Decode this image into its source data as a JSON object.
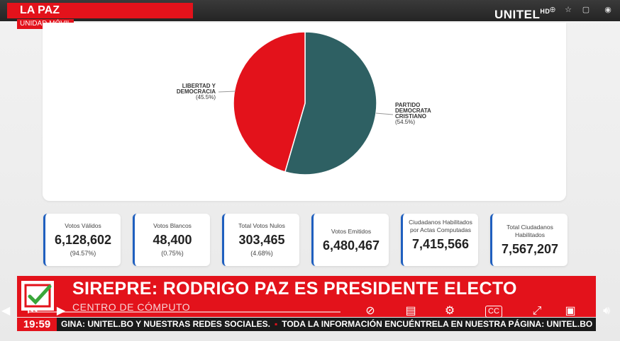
{
  "header": {
    "location": "LA PAZ",
    "unit": "UNIDAD MÓVIL",
    "logo_text": "UNITEL",
    "logo_sub": "HD"
  },
  "chart_data": {
    "type": "pie",
    "title": "",
    "labels": [
      "LIBERTAD Y DEMOCRACIA",
      "PARTIDO DEMOCRATA CRISTIANO"
    ],
    "values": [
      45.5,
      54.5
    ],
    "colors": [
      "#e3121b",
      "#2e6063"
    ],
    "label_lines": [
      {
        "name_lines": [
          "LIBERTAD Y",
          "DEMOCRACIA"
        ],
        "pct": "(45.5%)"
      },
      {
        "name_lines": [
          "PARTIDO",
          "DEMOCRATA",
          "CRISTIANO"
        ],
        "pct": "(54.5%)"
      }
    ]
  },
  "stats": [
    {
      "label": "Votos Válidos",
      "value": "6,128,602",
      "pct": "(94.57%)"
    },
    {
      "label": "Votos Blancos",
      "value": "48,400",
      "pct": "(0.75%)"
    },
    {
      "label": "Total Votos Nulos",
      "value": "303,465",
      "pct": "(4.68%)"
    },
    {
      "label": "Votos Emitidos",
      "value": "6,480,467",
      "pct": ""
    },
    {
      "label": "Ciudadanos Habilitados por Actas Computadas",
      "value": "7,415,566",
      "pct": ""
    },
    {
      "label": "Total Ciudadanos Habilitados",
      "value": "7,567,207",
      "pct": ""
    }
  ],
  "banner": {
    "headline": "SIREPRE: RODRIGO PAZ ES PRESIDENTE ELECTO",
    "subtitle": "CENTRO DE CÓMPUTO"
  },
  "ticker": {
    "time": "19:59",
    "text_a": "GINA: UNITEL.BO Y NUESTRAS REDES SOCIALES.",
    "text_b": "TODA LA INFORMACIÓN ENCUÉNTRELA EN NUESTRA PÁGINA: UNITEL.BO Y NU"
  },
  "icons": {
    "play": "play-icon",
    "skip_back": "skip-back-icon",
    "captions": "closed-captions-icon",
    "settings": "settings-gear-icon",
    "fullscreen": "fullscreen-icon"
  },
  "colors": {
    "brand_red": "#e3121b",
    "pie_teal": "#2e6063",
    "stat_accent": "#1f5fbf"
  }
}
